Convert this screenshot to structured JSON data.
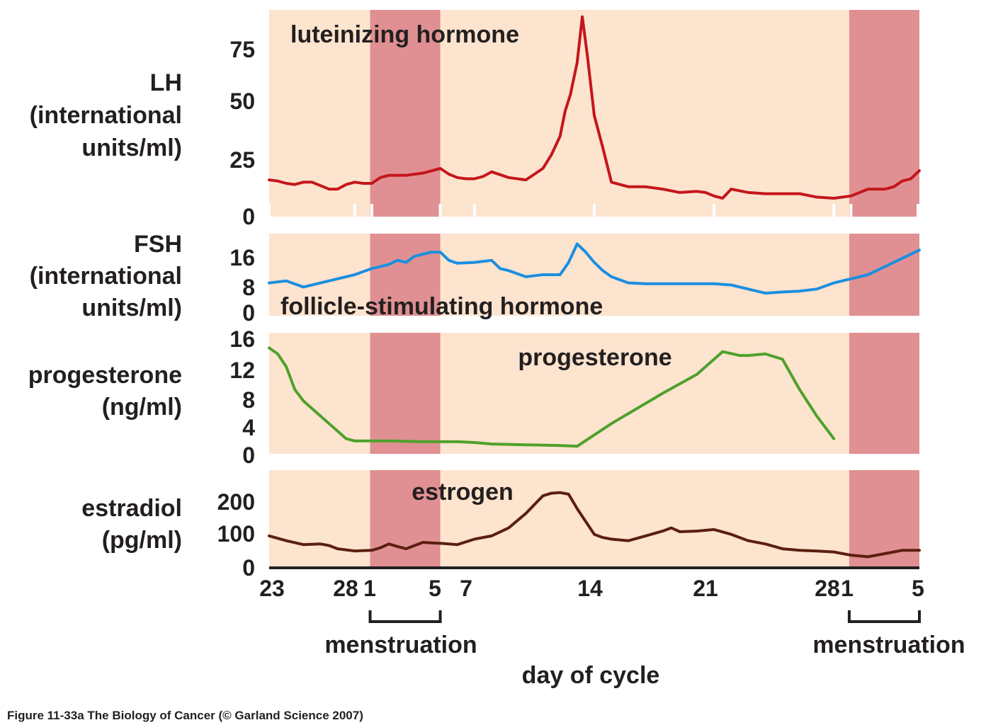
{
  "chart_data": {
    "type": "line",
    "x_axis": {
      "label": "day of cycle",
      "tick_labels": [
        "23",
        "28",
        "1",
        "5",
        "7",
        "14",
        "21",
        "28",
        "1",
        "5"
      ],
      "tick_positions_day": [
        -5,
        0,
        1,
        5,
        7,
        14,
        21,
        28,
        29,
        33
      ],
      "range_day": [
        -5,
        33
      ],
      "menstruation_label": "menstruation",
      "menstruation_periods": [
        [
          1,
          5
        ],
        [
          29,
          33
        ]
      ]
    },
    "panels": [
      {
        "id": "lh",
        "ylabel": [
          "LH",
          "(international",
          "units/ml)"
        ],
        "annotation": "luteinizing hormone",
        "ylim": [
          0,
          90
        ],
        "yticks": [
          0,
          25,
          50,
          75
        ],
        "color": "#c4161c",
        "series": {
          "name": "luteinizing hormone",
          "x": [
            -5,
            -4.5,
            -4,
            -3.5,
            -3,
            -2.5,
            -2,
            -1.5,
            -1,
            -0.5,
            0,
            0.5,
            1,
            1.5,
            2,
            2.5,
            3,
            4,
            5,
            5.5,
            6,
            6.5,
            7,
            7.5,
            8,
            9,
            10,
            11,
            11.5,
            12,
            12.3,
            12.6,
            13,
            13.3,
            13.6,
            14,
            14.5,
            15,
            16,
            17,
            18,
            19,
            20,
            20.5,
            21,
            21.5,
            22,
            23,
            24,
            25,
            26,
            27,
            28,
            29,
            30,
            31,
            31.5,
            32,
            32.5,
            33
          ],
          "values": [
            16,
            15.5,
            14.5,
            14,
            15,
            15,
            13.5,
            12,
            12,
            14,
            15,
            14.5,
            14.5,
            17,
            18,
            18,
            18,
            19,
            21,
            18.5,
            17,
            16.5,
            16.5,
            17.5,
            19.5,
            17,
            16,
            21,
            27,
            35,
            46,
            53,
            67,
            87,
            70,
            44,
            30,
            15,
            13,
            13,
            12,
            10.5,
            11,
            10.5,
            9,
            8,
            12,
            10.5,
            10,
            10,
            10,
            8.5,
            8,
            9,
            12,
            12,
            13,
            15.5,
            16.5,
            20
          ]
        }
      },
      {
        "id": "fsh",
        "ylabel": [
          "FSH",
          "(international",
          "units/ml)"
        ],
        "annotation": "follicle-stimulating hormone",
        "ylim": [
          0,
          20
        ],
        "yticks": [
          0,
          8,
          16
        ],
        "color": "#1b8fe0",
        "series": {
          "name": "follicle-stimulating hormone",
          "x": [
            -5,
            -4,
            -3,
            -2,
            -1,
            0,
            1,
            1.5,
            2,
            2.5,
            3,
            3.5,
            4,
            4.5,
            5,
            5.5,
            6,
            7,
            8,
            8.5,
            9,
            10,
            11,
            12,
            12.5,
            13,
            13.5,
            14,
            14.5,
            15,
            16,
            17,
            18,
            19,
            20,
            21,
            22,
            23,
            24,
            25,
            26,
            27,
            28,
            29,
            30,
            31,
            32,
            33
          ],
          "values": [
            8,
            8.5,
            7,
            8,
            9,
            10,
            11.5,
            12,
            12.5,
            13.5,
            13,
            14.5,
            15,
            15.5,
            15.5,
            13.5,
            12.8,
            13,
            13.5,
            11.5,
            11,
            9.5,
            10,
            10,
            13,
            17.5,
            15.5,
            13,
            11,
            9.5,
            8,
            7.8,
            7.8,
            7.8,
            7.8,
            7.8,
            7.5,
            6.5,
            5.5,
            5.8,
            6,
            6.5,
            8,
            9,
            10,
            12,
            14,
            16
          ]
        }
      },
      {
        "id": "progesterone",
        "ylabel": [
          "progesterone",
          "(ng/ml)"
        ],
        "annotation": "progesterone",
        "ylim": [
          0,
          16
        ],
        "yticks": [
          0,
          4,
          8,
          12,
          16
        ],
        "color": "#4ea12b",
        "series": {
          "name": "progesterone",
          "x": [
            -5,
            -4.5,
            -4,
            -3.5,
            -3,
            -2,
            -1,
            -0.5,
            0,
            2,
            4,
            6,
            7,
            8,
            10,
            12,
            13,
            15,
            18,
            20,
            21.5,
            22.5,
            23,
            24,
            25,
            26,
            27,
            28
          ],
          "values": [
            14,
            13.2,
            11.5,
            8.5,
            7,
            5,
            3,
            2,
            1.7,
            1.7,
            1.6,
            1.6,
            1.5,
            1.3,
            1.2,
            1.1,
            1.0,
            4,
            8,
            10.5,
            13.5,
            13.0,
            13.0,
            13.2,
            12.5,
            8.5,
            5,
            2
          ]
        }
      },
      {
        "id": "estradiol",
        "ylabel": [
          "estradiol",
          "(pg/ml)"
        ],
        "annotation": "estrogen",
        "ylim": [
          0,
          300
        ],
        "yticks": [
          0,
          100,
          200
        ],
        "color": "#5b1f0f",
        "series": {
          "name": "estrogen",
          "x": [
            -5,
            -4,
            -3,
            -2,
            -1.5,
            -1,
            0,
            1,
            1.5,
            2,
            2.5,
            3,
            3.5,
            4,
            4.5,
            5,
            5.5,
            6,
            7,
            8,
            9,
            10,
            11,
            11.5,
            12,
            12.5,
            13,
            13.5,
            14,
            14.5,
            15,
            16,
            17,
            18,
            18.5,
            19,
            20,
            21,
            22,
            23,
            24,
            25,
            26,
            27,
            28,
            29,
            30,
            31,
            32,
            33
          ],
          "values": [
            95,
            80,
            68,
            70,
            65,
            55,
            48,
            50,
            58,
            70,
            62,
            55,
            65,
            75,
            73,
            72,
            70,
            68,
            85,
            95,
            120,
            165,
            220,
            228,
            230,
            225,
            180,
            140,
            100,
            90,
            85,
            80,
            95,
            110,
            120,
            108,
            110,
            115,
            100,
            80,
            70,
            55,
            50,
            48,
            45,
            35,
            30,
            40,
            50,
            50
          ]
        }
      }
    ],
    "caption": "Figure 11-33a  The Biology of Cancer (© Garland Science 2007)"
  }
}
